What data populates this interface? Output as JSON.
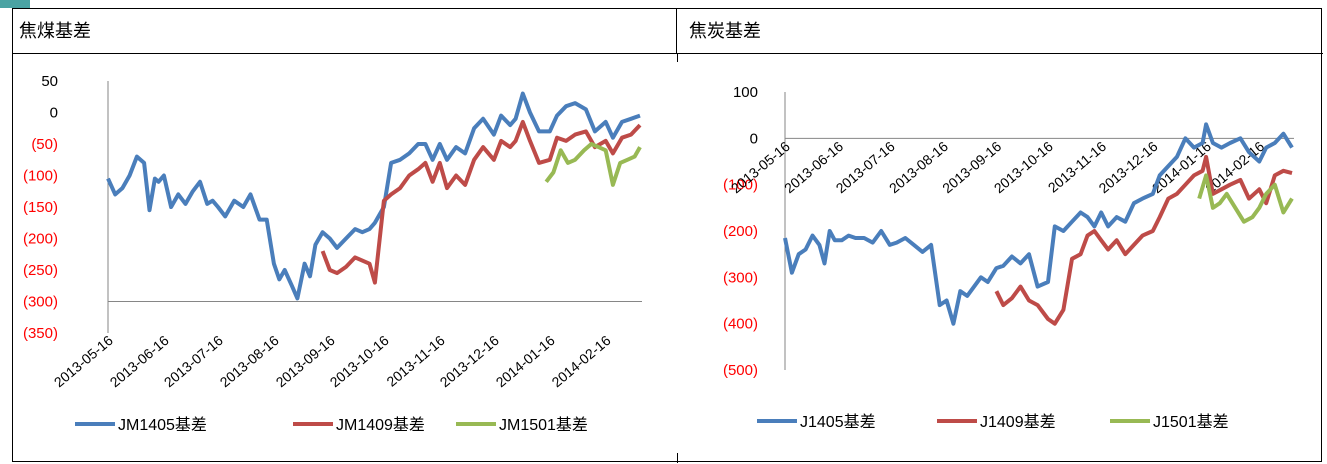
{
  "headers": {
    "left": "焦煤基差",
    "right": "焦炭基差"
  },
  "colors": {
    "series1": "#4a7ebb",
    "series2": "#be4b48",
    "series3": "#98b954",
    "negative": "#ff0000",
    "axis": "#868686"
  },
  "chart_data": [
    {
      "type": "line",
      "title": "",
      "ylim": [
        -350,
        50
      ],
      "yticks": [
        50,
        0,
        -50,
        -100,
        -150,
        -200,
        -250,
        -300,
        -350
      ],
      "ytick_labels": [
        "50",
        "0",
        "(50)",
        "(100)",
        "(150)",
        "(200)",
        "(250)",
        "(300)",
        "(350)"
      ],
      "x_axis_value": -300,
      "xticks": [
        "2013-05-16",
        "2013-06-16",
        "2013-07-16",
        "2013-08-16",
        "2013-09-16",
        "2013-10-16",
        "2013-11-16",
        "2013-12-16",
        "2014-01-16",
        "2014-02-16"
      ],
      "legend_position": "bottom",
      "series": [
        {
          "name": "JM1405基差",
          "x": [
            "2013-05-16",
            "2013-05-20",
            "2013-05-24",
            "2013-05-28",
            "2013-06-01",
            "2013-06-05",
            "2013-06-08",
            "2013-06-11",
            "2013-06-13",
            "2013-06-16",
            "2013-06-20",
            "2013-06-24",
            "2013-06-28",
            "2013-07-02",
            "2013-07-06",
            "2013-07-10",
            "2013-07-13",
            "2013-07-16",
            "2013-07-20",
            "2013-07-25",
            "2013-07-30",
            "2013-08-03",
            "2013-08-08",
            "2013-08-12",
            "2013-08-16",
            "2013-08-19",
            "2013-08-22",
            "2013-08-26",
            "2013-08-29",
            "2013-09-02",
            "2013-09-05",
            "2013-09-08",
            "2013-09-12",
            "2013-09-16",
            "2013-09-20",
            "2013-09-25",
            "2013-09-30",
            "2013-10-04",
            "2013-10-08",
            "2013-10-11",
            "2013-10-16",
            "2013-10-20",
            "2013-10-25",
            "2013-10-30",
            "2013-11-04",
            "2013-11-08",
            "2013-11-12",
            "2013-11-16",
            "2013-11-20",
            "2013-11-25",
            "2013-11-30",
            "2013-12-05",
            "2013-12-10",
            "2013-12-16",
            "2013-12-20",
            "2013-12-25",
            "2013-12-28",
            "2014-01-01",
            "2014-01-05",
            "2014-01-10",
            "2014-01-16",
            "2014-01-20",
            "2014-01-25",
            "2014-01-30",
            "2014-02-05",
            "2014-02-10",
            "2014-02-16",
            "2014-02-20",
            "2014-02-25",
            "2014-03-02",
            "2014-03-07"
          ],
          "values": [
            -105,
            -130,
            -120,
            -100,
            -70,
            -80,
            -155,
            -105,
            -110,
            -100,
            -150,
            -130,
            -145,
            -125,
            -110,
            -145,
            -140,
            -150,
            -165,
            -140,
            -150,
            -130,
            -170,
            -170,
            -240,
            -265,
            -250,
            -275,
            -295,
            -240,
            -260,
            -210,
            -190,
            -200,
            -215,
            -200,
            -185,
            -190,
            -185,
            -175,
            -150,
            -80,
            -75,
            -65,
            -50,
            -50,
            -75,
            -50,
            -75,
            -55,
            -65,
            -25,
            -10,
            -35,
            -5,
            -20,
            -10,
            30,
            0,
            -30,
            -30,
            -5,
            10,
            15,
            5,
            -30,
            -15,
            -40,
            -15,
            -10,
            -5
          ]
        },
        {
          "name": "JM1409基差",
          "x": [
            "2013-09-12",
            "2013-09-16",
            "2013-09-20",
            "2013-09-25",
            "2013-09-30",
            "2013-10-04",
            "2013-10-08",
            "2013-10-11",
            "2013-10-16",
            "2013-10-20",
            "2013-10-25",
            "2013-10-30",
            "2013-11-04",
            "2013-11-08",
            "2013-11-12",
            "2013-11-16",
            "2013-11-20",
            "2013-11-25",
            "2013-11-30",
            "2013-12-05",
            "2013-12-10",
            "2013-12-16",
            "2013-12-20",
            "2013-12-25",
            "2013-12-28",
            "2014-01-01",
            "2014-01-05",
            "2014-01-10",
            "2014-01-16",
            "2014-01-20",
            "2014-01-25",
            "2014-01-30",
            "2014-02-05",
            "2014-02-10",
            "2014-02-16",
            "2014-02-20",
            "2014-02-25",
            "2014-03-02",
            "2014-03-07"
          ],
          "values": [
            -220,
            -250,
            -255,
            -245,
            -230,
            -235,
            -240,
            -270,
            -140,
            -130,
            -120,
            -100,
            -90,
            -80,
            -110,
            -80,
            -120,
            -100,
            -115,
            -75,
            -55,
            -75,
            -45,
            -55,
            -45,
            -15,
            -45,
            -80,
            -75,
            -40,
            -45,
            -35,
            -30,
            -55,
            -45,
            -65,
            -40,
            -35,
            -20
          ]
        },
        {
          "name": "JM1501基差",
          "x": [
            "2014-01-14",
            "2014-01-18",
            "2014-01-22",
            "2014-01-26",
            "2014-01-30",
            "2014-02-04",
            "2014-02-08",
            "2014-02-12",
            "2014-02-16",
            "2014-02-20",
            "2014-02-24",
            "2014-02-28",
            "2014-03-04",
            "2014-03-07"
          ],
          "values": [
            -110,
            -95,
            -60,
            -80,
            -75,
            -60,
            -50,
            -55,
            -60,
            -115,
            -80,
            -75,
            -70,
            -55
          ]
        }
      ]
    },
    {
      "type": "line",
      "title": "",
      "ylim": [
        -500,
        100
      ],
      "yticks": [
        100,
        0,
        -100,
        -200,
        -300,
        -400,
        -500
      ],
      "ytick_labels": [
        "100",
        "0",
        "(100)",
        "(200)",
        "(300)",
        "(400)",
        "(500)"
      ],
      "x_axis_value": 0,
      "xticks": [
        "2013-05-16",
        "2013-06-16",
        "2013-07-16",
        "2013-08-16",
        "2013-09-16",
        "2013-10-16",
        "2013-11-16",
        "2013-12-16",
        "2014-01-16",
        "2014-02-16"
      ],
      "legend_position": "bottom",
      "series": [
        {
          "name": "J1405基差",
          "x": [
            "2013-05-16",
            "2013-05-20",
            "2013-05-24",
            "2013-05-28",
            "2013-06-01",
            "2013-06-05",
            "2013-06-08",
            "2013-06-11",
            "2013-06-14",
            "2013-06-18",
            "2013-06-22",
            "2013-06-26",
            "2013-07-01",
            "2013-07-06",
            "2013-07-11",
            "2013-07-16",
            "2013-07-20",
            "2013-07-25",
            "2013-07-30",
            "2013-08-04",
            "2013-08-09",
            "2013-08-14",
            "2013-08-18",
            "2013-08-22",
            "2013-08-26",
            "2013-08-30",
            "2013-09-03",
            "2013-09-07",
            "2013-09-11",
            "2013-09-16",
            "2013-09-20",
            "2013-09-25",
            "2013-09-30",
            "2013-10-05",
            "2013-10-10",
            "2013-10-16",
            "2013-10-20",
            "2013-10-25",
            "2013-10-30",
            "2013-11-04",
            "2013-11-08",
            "2013-11-12",
            "2013-11-16",
            "2013-11-20",
            "2013-11-25",
            "2013-11-30",
            "2013-12-05",
            "2013-12-10",
            "2013-12-16",
            "2013-12-20",
            "2013-12-25",
            "2013-12-30",
            "2014-01-04",
            "2014-01-09",
            "2014-01-14",
            "2014-01-16",
            "2014-01-20",
            "2014-01-25",
            "2014-01-30",
            "2014-02-05",
            "2014-02-10",
            "2014-02-16",
            "2014-02-20",
            "2014-02-25",
            "2014-03-02",
            "2014-03-07"
          ],
          "values": [
            -215,
            -290,
            -250,
            -240,
            -210,
            -230,
            -270,
            -200,
            -220,
            -220,
            -210,
            -215,
            -215,
            -225,
            -200,
            -230,
            -225,
            -215,
            -230,
            -245,
            -230,
            -360,
            -350,
            -400,
            -330,
            -340,
            -320,
            -300,
            -310,
            -280,
            -275,
            -255,
            -270,
            -250,
            -320,
            -310,
            -190,
            -200,
            -180,
            -160,
            -170,
            -190,
            -160,
            -190,
            -170,
            -180,
            -140,
            -130,
            -120,
            -80,
            -60,
            -40,
            0,
            -20,
            -10,
            30,
            -10,
            -20,
            -10,
            0,
            -30,
            -50,
            -20,
            -10,
            10,
            -20
          ]
        },
        {
          "name": "J1409基差",
          "x": [
            "2013-09-16",
            "2013-09-20",
            "2013-09-25",
            "2013-09-30",
            "2013-10-05",
            "2013-10-10",
            "2013-10-16",
            "2013-10-20",
            "2013-10-25",
            "2013-10-30",
            "2013-11-04",
            "2013-11-08",
            "2013-11-12",
            "2013-11-16",
            "2013-11-20",
            "2013-11-25",
            "2013-11-30",
            "2013-12-05",
            "2013-12-10",
            "2013-12-16",
            "2013-12-20",
            "2013-12-25",
            "2013-12-30",
            "2014-01-04",
            "2014-01-09",
            "2014-01-14",
            "2014-01-16",
            "2014-01-20",
            "2014-01-25",
            "2014-01-30",
            "2014-02-05",
            "2014-02-10",
            "2014-02-16",
            "2014-02-20",
            "2014-02-25",
            "2014-03-02",
            "2014-03-07"
          ],
          "values": [
            -330,
            -360,
            -345,
            -320,
            -350,
            -360,
            -390,
            -400,
            -370,
            -260,
            -250,
            -210,
            -200,
            -220,
            -240,
            -220,
            -250,
            -230,
            -210,
            -200,
            -170,
            -130,
            -120,
            -100,
            -80,
            -70,
            -40,
            -120,
            -110,
            -100,
            -90,
            -130,
            -110,
            -140,
            -80,
            -70,
            -75
          ]
        },
        {
          "name": "J1501基差",
          "x": [
            "2014-01-12",
            "2014-01-16",
            "2014-01-20",
            "2014-01-24",
            "2014-01-28",
            "2014-02-02",
            "2014-02-07",
            "2014-02-12",
            "2014-02-16",
            "2014-02-20",
            "2014-02-25",
            "2014-03-02",
            "2014-03-07"
          ],
          "values": [
            -130,
            -80,
            -150,
            -140,
            -120,
            -150,
            -180,
            -170,
            -150,
            -120,
            -100,
            -160,
            -130
          ]
        }
      ]
    }
  ]
}
